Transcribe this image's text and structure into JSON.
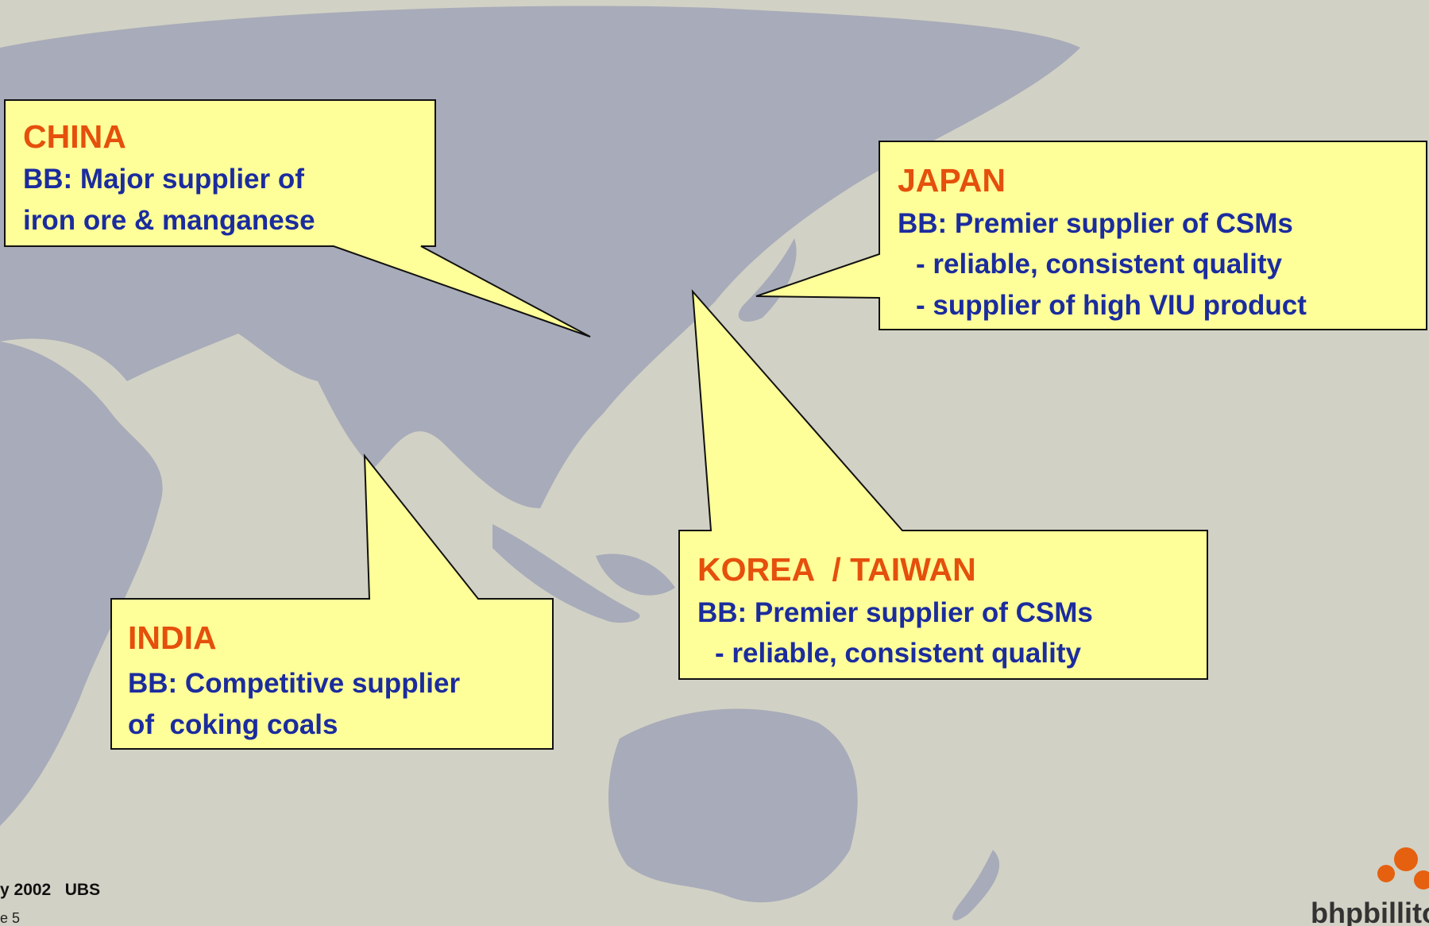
{
  "callouts": [
    {
      "title": "CHINA",
      "lines": [
        "BB: Major supplier of",
        "iron ore & manganese"
      ]
    },
    {
      "title": "JAPAN",
      "lines": [
        "BB: Premier supplier of CSMs",
        "- reliable, consistent quality",
        "- supplier of high VIU product"
      ]
    },
    {
      "title": "KOREA  / TAIWAN",
      "lines": [
        "BB: Premier supplier of CSMs",
        "- reliable, consistent quality"
      ]
    },
    {
      "title": "INDIA",
      "lines": [
        "BB: Competitive supplier",
        "of  coking coals"
      ]
    }
  ],
  "footer": {
    "event": "y 2002   UBS",
    "page": "e 5"
  },
  "logo": "bhpbillito"
}
